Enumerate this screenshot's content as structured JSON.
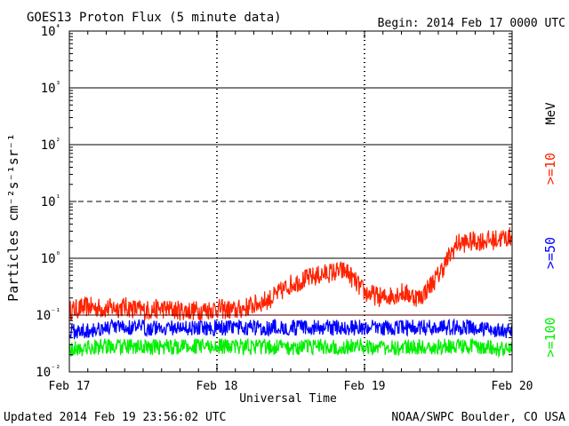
{
  "header": {
    "title": "GOES13 Proton Flux (5 minute data)",
    "begin": "Begin: 2014 Feb 17 0000 UTC"
  },
  "footer": {
    "updated": "Updated 2014 Feb 19 23:56:02 UTC",
    "credit": "NOAA/SWPC Boulder, CO USA"
  },
  "chart_data": {
    "type": "line",
    "title": "GOES13 Proton Flux (5 minute data)",
    "xlabel": "Universal Time",
    "ylabel": "Particles cm⁻²s⁻¹sr⁻¹",
    "y_scale": "log",
    "ylim": [
      0.01,
      10000
    ],
    "y_ticks": [
      {
        "value": 0.01,
        "label": "10⁻²"
      },
      {
        "value": 0.1,
        "label": "10⁻¹"
      },
      {
        "value": 1,
        "label": "10⁰"
      },
      {
        "value": 10,
        "label": "10¹"
      },
      {
        "value": 100,
        "label": "10²"
      },
      {
        "value": 1000,
        "label": "10³"
      },
      {
        "value": 10000,
        "label": "10⁴"
      }
    ],
    "xlim": [
      "2014-02-17 00:00",
      "2014-02-20 00:00"
    ],
    "x_ticks": [
      {
        "value": "2014-02-17",
        "label": "Feb 17"
      },
      {
        "value": "2014-02-18",
        "label": "Feb 18"
      },
      {
        "value": "2014-02-19",
        "label": "Feb 19"
      },
      {
        "value": "2014-02-20",
        "label": "Feb 20"
      }
    ],
    "grid": "horizontal lines at each decade (10¹ dashed), dashed vertical day separators",
    "reference_lines": [
      {
        "value": 10,
        "style": "dashed"
      },
      {
        "value": 0.1,
        "style": "solid"
      }
    ],
    "legend_title": "MeV",
    "series": [
      {
        "name": ">=10",
        "color": "#ff2200",
        "x": [
          "2014-02-17 00:00",
          "2014-02-17 03:00",
          "2014-02-17 06:00",
          "2014-02-17 09:00",
          "2014-02-17 12:00",
          "2014-02-17 15:00",
          "2014-02-17 18:00",
          "2014-02-17 21:00",
          "2014-02-18 00:00",
          "2014-02-18 03:00",
          "2014-02-18 06:00",
          "2014-02-18 09:00",
          "2014-02-18 12:00",
          "2014-02-18 15:00",
          "2014-02-18 18:00",
          "2014-02-18 21:00",
          "2014-02-19 00:00",
          "2014-02-19 03:00",
          "2014-02-19 06:00",
          "2014-02-19 09:00",
          "2014-02-19 12:00",
          "2014-02-19 15:00",
          "2014-02-19 18:00",
          "2014-02-19 21:00",
          "2014-02-20 00:00"
        ],
        "values": [
          0.12,
          0.14,
          0.13,
          0.14,
          0.12,
          0.13,
          0.12,
          0.12,
          0.13,
          0.12,
          0.15,
          0.2,
          0.35,
          0.45,
          0.55,
          0.6,
          0.25,
          0.2,
          0.25,
          0.2,
          0.5,
          1.8,
          2.0,
          2.1,
          2.4
        ]
      },
      {
        "name": ">=50",
        "color": "#0000ff",
        "x": [
          "2014-02-17 00:00",
          "2014-02-17 06:00",
          "2014-02-17 12:00",
          "2014-02-17 18:00",
          "2014-02-18 00:00",
          "2014-02-18 06:00",
          "2014-02-18 12:00",
          "2014-02-18 18:00",
          "2014-02-19 00:00",
          "2014-02-19 06:00",
          "2014-02-19 12:00",
          "2014-02-19 18:00",
          "2014-02-20 00:00"
        ],
        "values": [
          0.05,
          0.06,
          0.06,
          0.06,
          0.06,
          0.06,
          0.06,
          0.06,
          0.06,
          0.06,
          0.06,
          0.06,
          0.05
        ]
      },
      {
        "name": ">=100",
        "color": "#00ee00",
        "x": [
          "2014-02-17 00:00",
          "2014-02-17 06:00",
          "2014-02-17 12:00",
          "2014-02-17 18:00",
          "2014-02-18 00:00",
          "2014-02-18 06:00",
          "2014-02-18 12:00",
          "2014-02-18 18:00",
          "2014-02-19 00:00",
          "2014-02-19 06:00",
          "2014-02-19 12:00",
          "2014-02-19 18:00",
          "2014-02-20 00:00"
        ],
        "values": [
          0.025,
          0.028,
          0.027,
          0.028,
          0.028,
          0.028,
          0.027,
          0.028,
          0.028,
          0.027,
          0.028,
          0.028,
          0.025
        ]
      }
    ]
  }
}
